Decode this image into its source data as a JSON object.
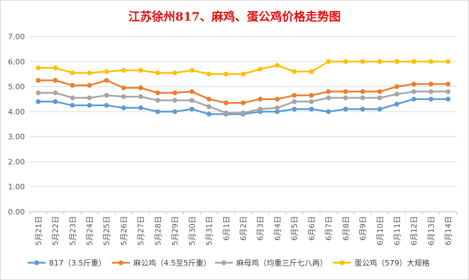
{
  "chart_data": {
    "type": "line",
    "title": "江苏徐州817、麻鸡、蛋公鸡价格走势图",
    "categories": [
      "5月21日",
      "5月22日",
      "5月23日",
      "5月24日",
      "5月25日",
      "5月26日",
      "5月27日",
      "5月28日",
      "5月29日",
      "5月30日",
      "5月31日",
      "6月1日",
      "6月2日",
      "6月3日",
      "6月4日",
      "6月5日",
      "6月6日",
      "6月7日",
      "6月8日",
      "6月9日",
      "6月10日",
      "6月11日",
      "6月12日",
      "6月13日",
      "6月14日"
    ],
    "yticks": [
      "0.00",
      "1.00",
      "2.00",
      "3.00",
      "4.00",
      "5.00",
      "6.00",
      "7.00"
    ],
    "ylim": [
      0,
      7
    ],
    "grid": true,
    "legend_position": "bottom",
    "series": [
      {
        "name": "817（3.5斤重）",
        "color": "#5b9bd5",
        "values": [
          4.4,
          4.4,
          4.25,
          4.25,
          4.25,
          4.15,
          4.15,
          4.0,
          4.0,
          4.1,
          3.9,
          3.9,
          3.9,
          4.0,
          4.0,
          4.1,
          4.1,
          4.0,
          4.1,
          4.1,
          4.1,
          4.3,
          4.5,
          4.5,
          4.5
        ]
      },
      {
        "name": "麻公鸡（4.5至5斤重）",
        "color": "#ed7d31",
        "values": [
          5.25,
          5.25,
          5.05,
          5.05,
          5.25,
          4.95,
          4.95,
          4.75,
          4.75,
          4.8,
          4.5,
          4.35,
          4.35,
          4.5,
          4.5,
          4.65,
          4.65,
          4.8,
          4.8,
          4.8,
          4.8,
          5.0,
          5.1,
          5.1,
          5.1
        ]
      },
      {
        "name": "麻母鸡（均重三斤七八两）",
        "color": "#a5a5a5",
        "values": [
          4.75,
          4.75,
          4.55,
          4.55,
          4.65,
          4.6,
          4.6,
          4.45,
          4.45,
          4.45,
          4.2,
          3.95,
          3.95,
          4.1,
          4.15,
          4.4,
          4.4,
          4.55,
          4.55,
          4.55,
          4.55,
          4.7,
          4.8,
          4.8,
          4.8
        ]
      },
      {
        "name": "蛋公鸡（579）大规格",
        "color": "#ffc000",
        "values": [
          5.75,
          5.75,
          5.55,
          5.55,
          5.6,
          5.65,
          5.65,
          5.55,
          5.55,
          5.65,
          5.5,
          5.5,
          5.5,
          5.7,
          5.85,
          5.6,
          5.6,
          6.0,
          6.0,
          6.0,
          6.0,
          6.0,
          6.0,
          6.0,
          6.0
        ]
      }
    ]
  }
}
